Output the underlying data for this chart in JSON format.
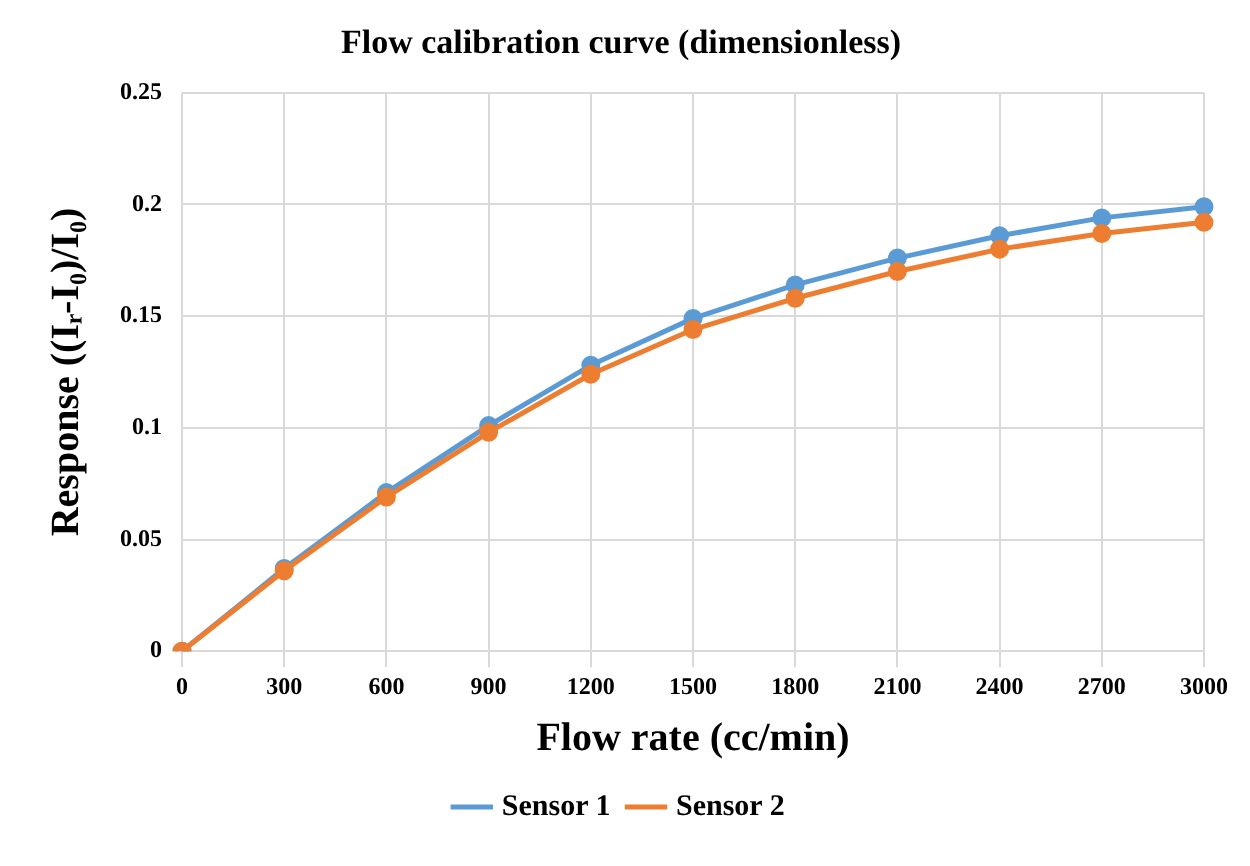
{
  "chart_data": {
    "type": "line",
    "title": "Flow calibration curve (dimensionless)",
    "xlabel": "Flow rate (cc/min)",
    "ylabel": "Response ((Iᵣ-I₀)/I₀)",
    "categories": [
      "0",
      "300",
      "600",
      "900",
      "1200",
      "1500",
      "1800",
      "2100",
      "2400",
      "2700",
      "3000"
    ],
    "series": [
      {
        "name": "Sensor 1",
        "color": "#5b9bd5",
        "values": [
          0,
          0.037,
          0.071,
          0.101,
          0.128,
          0.149,
          0.164,
          0.176,
          0.186,
          0.194,
          0.199
        ]
      },
      {
        "name": "Sensor 2",
        "color": "#ed7d31",
        "values": [
          0,
          0.036,
          0.069,
          0.098,
          0.124,
          0.144,
          0.158,
          0.17,
          0.18,
          0.187,
          0.192
        ]
      }
    ],
    "ylim": [
      0,
      0.25
    ],
    "yticks": [
      0,
      0.05,
      0.1,
      0.15,
      0.2,
      0.25
    ],
    "grid": true,
    "legend": "bottom",
    "marker": "circle",
    "line_style": "solid"
  }
}
